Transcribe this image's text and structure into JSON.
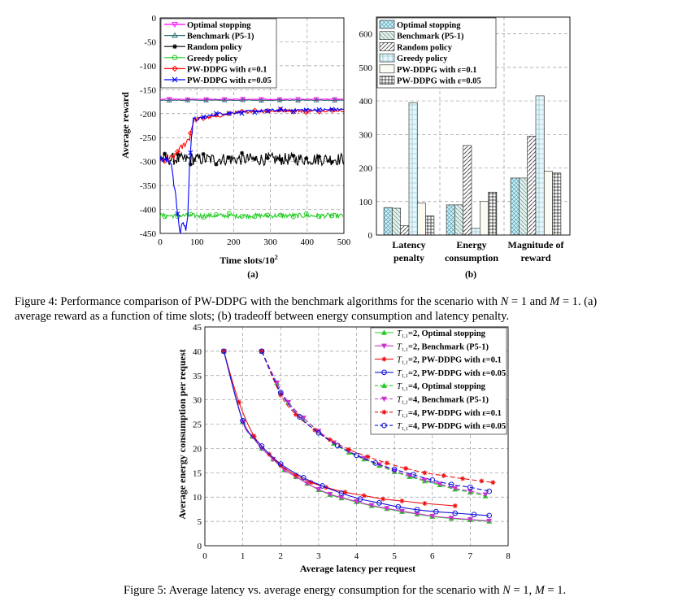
{
  "fig4": {
    "a": {
      "label": "(a)",
      "xlabel_main": "Time slots/10",
      "xlabel_exp": "2",
      "ylabel": "Average reward",
      "xticks": [
        0,
        100,
        200,
        300,
        400,
        500
      ],
      "yticks": [
        0,
        -50,
        -100,
        -150,
        -200,
        -250,
        -300,
        -350,
        -400,
        -450
      ],
      "legend": [
        "Optimal stopping",
        "Benchmark (P5-1)",
        "Random policy",
        "Greedy policy",
        "PW-DDPG with ε=0.1",
        "PW-DDPG with ε=0.05"
      ]
    },
    "b": {
      "label": "(b)",
      "yticks": [
        0,
        100,
        200,
        300,
        400,
        500,
        600
      ],
      "categories": [
        {
          "line1": "Latency",
          "line2": "penalty"
        },
        {
          "line1": "Energy",
          "line2": "consumption"
        },
        {
          "line1": "Magnitude of",
          "line2": "reward"
        }
      ],
      "legend": [
        "Optimal stopping",
        "Benchmark (P5-1)",
        "Random policy",
        "Greedy policy",
        "PW-DDPG with ε=0.1",
        "PW-DDPG with ε=0.05"
      ]
    },
    "caption": {
      "p1": "Figure 4: Performance comparison of PW-DDPG with the benchmark algorithms for the scenario with ",
      "N": "N",
      "eq1": " = 1 and ",
      "M": "M",
      "eq2": " = 1. (a)",
      "line2": "average reward as a function of time slots; (b) tradeoff between energy consumption and latency penalty."
    }
  },
  "fig5": {
    "xlabel": "Average latency per request",
    "ylabel": "Average energy consumption per request",
    "xticks": [
      0,
      1,
      2,
      3,
      4,
      5,
      6,
      7,
      8
    ],
    "yticks": [
      0,
      5,
      10,
      15,
      20,
      25,
      30,
      35,
      40,
      45
    ],
    "legend_T": "T",
    "legend_sub": "1,1",
    "legend": [
      {
        "val": "=2, ",
        "name": "Optimal stopping"
      },
      {
        "val": "=2, ",
        "name": "Benchmark (P5-1)"
      },
      {
        "val": "=2, ",
        "name": "PW-DDPG with ε=0.1"
      },
      {
        "val": "=2, ",
        "name": "PW-DDPG with ε=0.05"
      },
      {
        "val": "=4, ",
        "name": "Optimal stopping"
      },
      {
        "val": "=4, ",
        "name": "Benchmark (P5-1)"
      },
      {
        "val": "=4, ",
        "name": "PW-DDPG with ε=0.1"
      },
      {
        "val": "=4, ",
        "name": "PW-DDPG with ε=0.05"
      }
    ],
    "caption": {
      "p1": "Figure 5: Average latency vs. average energy consumption for the scenario with ",
      "N": "N",
      "eq1": " = 1, ",
      "M": "M",
      "eq2": " = 1."
    }
  },
  "chart_data": [
    {
      "type": "line",
      "id": "fig4a",
      "xlim": [
        0,
        500
      ],
      "ylim": [
        -450,
        0
      ],
      "grid": true,
      "legend_position": "top-left",
      "series": [
        {
          "name": "Optimal stopping",
          "color": "#ff00ff",
          "flat": -170
        },
        {
          "name": "Benchmark (P5-1)",
          "color": "#2f6f6f",
          "flat": -172
        },
        {
          "name": "Random policy",
          "color": "#000000",
          "base": -295,
          "x": [
            0,
            500
          ]
        },
        {
          "name": "Greedy policy",
          "color": "#22cc22",
          "base": -413,
          "x": [
            0,
            500
          ]
        },
        {
          "name": "PW-DDPG with ε=0.1",
          "color": "#ff0000",
          "x": [
            0,
            20,
            40,
            50,
            60,
            70,
            80,
            90,
            100,
            130,
            160,
            200,
            250,
            300,
            350,
            400,
            450,
            500
          ],
          "y": [
            -300,
            -295,
            -290,
            -275,
            -270,
            -260,
            -250,
            -215,
            -210,
            -208,
            -205,
            -198,
            -195,
            -195,
            -193,
            -195,
            -193,
            -193
          ]
        },
        {
          "name": "PW-DDPG with ε=0.05",
          "color": "#0000ff",
          "x": [
            0,
            30,
            45,
            50,
            55,
            60,
            70,
            75,
            80,
            85,
            90,
            100,
            130,
            160,
            200,
            250,
            300,
            350,
            400,
            450,
            500
          ],
          "y": [
            -295,
            -300,
            -390,
            -430,
            -450,
            -425,
            -440,
            -420,
            -300,
            -250,
            -215,
            -212,
            -205,
            -200,
            -198,
            -195,
            -193,
            -193,
            -192,
            -192,
            -191
          ]
        }
      ]
    },
    {
      "type": "bar",
      "id": "fig4b",
      "ylim": [
        0,
        650
      ],
      "grid": true,
      "legend_position": "top",
      "categories": [
        "Latency penalty",
        "Energy consumption",
        "Magnitude of reward"
      ],
      "series": [
        {
          "name": "Optimal stopping",
          "values": [
            82,
            90,
            170
          ]
        },
        {
          "name": "Benchmark (P5-1)",
          "values": [
            80,
            90,
            170
          ]
        },
        {
          "name": "Random policy",
          "values": [
            28,
            267,
            295
          ]
        },
        {
          "name": "Greedy policy",
          "values": [
            395,
            20,
            415
          ]
        },
        {
          "name": "PW-DDPG with ε=0.1",
          "values": [
            95,
            100,
            190
          ]
        },
        {
          "name": "PW-DDPG with ε=0.05",
          "values": [
            57,
            128,
            185
          ]
        }
      ]
    },
    {
      "type": "line",
      "id": "fig5",
      "xlim": [
        0,
        8
      ],
      "ylim": [
        0,
        45
      ],
      "grid": true,
      "legend_position": "top-right",
      "series": [
        {
          "name": "T1,1=2, Optimal stopping",
          "color": "#22cc22",
          "marker": "triangle-up",
          "dash": "",
          "x": [
            0.5,
            1.0,
            1.25,
            1.5,
            1.8,
            2.1,
            2.4,
            2.7,
            3.0,
            3.3,
            3.6,
            4.0,
            4.4,
            4.8,
            5.2,
            5.6,
            6.0,
            6.5,
            7.0,
            7.5
          ],
          "y": [
            40,
            25.5,
            22.5,
            20.0,
            17.8,
            15.6,
            14.2,
            12.8,
            11.5,
            10.5,
            9.8,
            9.0,
            8.2,
            7.6,
            7.0,
            6.5,
            6.0,
            5.6,
            5.3,
            5.0
          ]
        },
        {
          "name": "T1,1=2, Benchmark (P5-1)",
          "color": "#cc33cc",
          "marker": "triangle-down",
          "dash": "",
          "x": [
            0.5,
            1.0,
            1.25,
            1.5,
            1.8,
            2.1,
            2.4,
            2.7,
            3.0,
            3.3,
            3.6,
            4.0,
            4.4,
            4.8,
            5.2,
            5.6,
            6.0,
            6.5,
            7.0,
            7.5
          ],
          "y": [
            40,
            25.5,
            22.5,
            20.0,
            17.8,
            15.6,
            14.2,
            12.8,
            11.6,
            10.6,
            9.9,
            9.1,
            8.3,
            7.7,
            7.1,
            6.6,
            6.1,
            5.7,
            5.4,
            5.1
          ]
        },
        {
          "name": "T1,1=2, PW-DDPG with ε=0.1",
          "color": "#ee1111",
          "marker": "star",
          "dash": "",
          "x": [
            0.5,
            0.9,
            1.3,
            1.7,
            2.0,
            2.4,
            2.8,
            3.2,
            3.7,
            4.2,
            4.7,
            5.2,
            5.8,
            6.6
          ],
          "y": [
            40,
            29.5,
            22.5,
            18.8,
            16.5,
            14.5,
            13.0,
            12.0,
            11.0,
            10.3,
            9.6,
            9.2,
            8.7,
            8.2
          ]
        },
        {
          "name": "T1,1=2, PW-DDPG with ε=0.05",
          "color": "#1111dd",
          "marker": "circle",
          "dash": "",
          "x": [
            0.5,
            1.0,
            1.5,
            2.0,
            2.6,
            3.1,
            3.6,
            4.1,
            4.6,
            5.1,
            5.6,
            6.1,
            6.6,
            7.1,
            7.5
          ],
          "y": [
            40,
            25.7,
            20.5,
            16.8,
            14.0,
            12.3,
            10.8,
            9.6,
            8.8,
            8.0,
            7.4,
            7.0,
            6.7,
            6.4,
            6.2
          ]
        },
        {
          "name": "T1,1=4, Optimal stopping",
          "color": "#22cc22",
          "marker": "triangle-up",
          "dash": "6 3",
          "x": [
            1.5,
            1.9,
            2.2,
            2.6,
            3.0,
            3.4,
            3.8,
            4.2,
            4.6,
            5.0,
            5.4,
            5.8,
            6.2,
            6.6,
            7.0,
            7.4
          ],
          "y": [
            40,
            33.5,
            29.5,
            26.2,
            23.5,
            21.0,
            19.2,
            17.8,
            16.5,
            15.2,
            14.2,
            13.3,
            12.5,
            11.6,
            11.0,
            10.2
          ]
        },
        {
          "name": "T1,1=4, Benchmark (P5-1)",
          "color": "#cc33cc",
          "marker": "triangle-down",
          "dash": "6 3",
          "x": [
            1.5,
            1.9,
            2.2,
            2.6,
            3.0,
            3.4,
            3.8,
            4.2,
            4.6,
            5.0,
            5.4,
            5.8,
            6.2,
            6.6,
            7.0,
            7.4
          ],
          "y": [
            40,
            33.5,
            29.5,
            26.3,
            23.6,
            21.2,
            19.4,
            18.0,
            16.7,
            15.4,
            14.4,
            13.5,
            12.7,
            11.8,
            11.2,
            10.5
          ]
        },
        {
          "name": "T1,1=4, PW-DDPG with ε=0.1",
          "color": "#ee1111",
          "marker": "star",
          "dash": "6 3",
          "x": [
            1.5,
            2.0,
            2.4,
            2.9,
            3.3,
            3.8,
            4.3,
            4.8,
            5.3,
            5.8,
            6.3,
            6.8,
            7.3,
            7.6
          ],
          "y": [
            40,
            31.0,
            27.0,
            23.8,
            21.8,
            19.8,
            18.3,
            17.0,
            15.9,
            15.0,
            14.4,
            13.8,
            13.3,
            13.0
          ]
        },
        {
          "name": "T1,1=4, PW-DDPG with ε=0.05",
          "color": "#1111dd",
          "marker": "circle",
          "dash": "6 3",
          "x": [
            1.5,
            2.0,
            2.5,
            3.0,
            3.5,
            4.0,
            4.5,
            5.0,
            5.5,
            6.0,
            6.5,
            7.0,
            7.5
          ],
          "y": [
            40,
            31.5,
            26.5,
            23.2,
            20.6,
            18.6,
            17.0,
            15.7,
            14.6,
            13.5,
            12.6,
            12.0,
            11.2
          ]
        }
      ]
    }
  ]
}
